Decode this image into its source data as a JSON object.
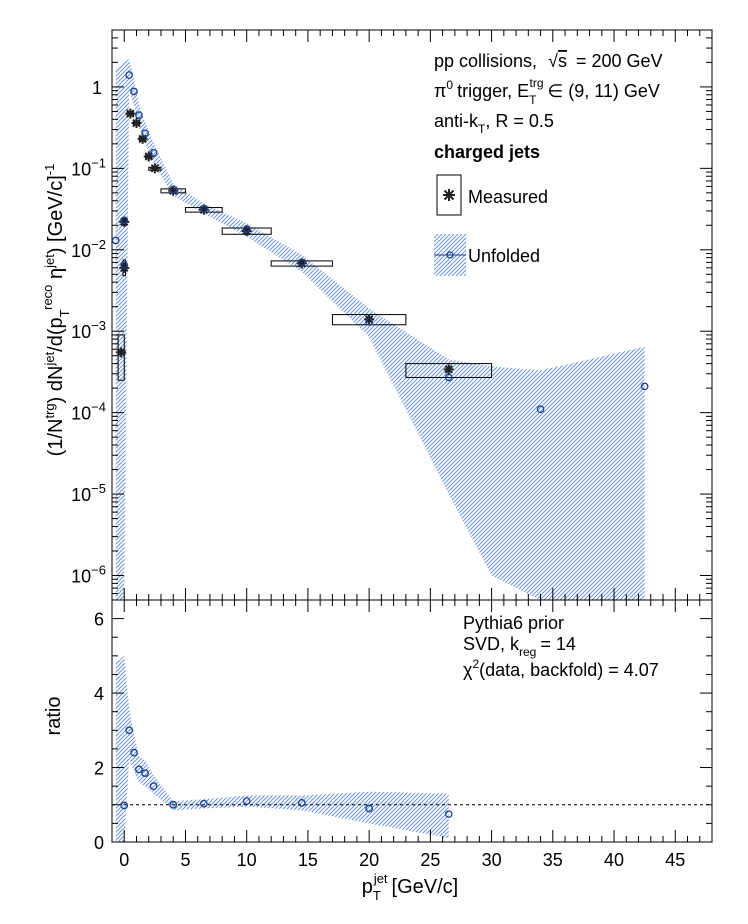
{
  "chart_data": [
    {
      "type": "scatter",
      "title": "",
      "xlabel": "p_T^jet [GeV/c]",
      "ylabel": "(1/N^trg) dN^jet/d(p_T^reco η^jet) [GeV/c]^-1",
      "y_scale": "log",
      "xlim": [
        -1,
        48
      ],
      "ylim": [
        5e-07,
        5
      ],
      "y_ticks": [
        {
          "v": 1e-06,
          "m": "10",
          "e": "−6"
        },
        {
          "v": 1e-05,
          "m": "10",
          "e": "−5"
        },
        {
          "v": 0.0001,
          "m": "10",
          "e": "−4"
        },
        {
          "v": 0.001,
          "m": "10",
          "e": "−3"
        },
        {
          "v": 0.01,
          "m": "10",
          "e": "−2"
        },
        {
          "v": 0.1,
          "m": "10",
          "e": "−1"
        },
        {
          "v": 1,
          "m": "1",
          "e": ""
        }
      ],
      "annotations": {
        "line1": "pp collisions,",
        "line1_sqrt": "s",
        "line1_value": "= 200 GeV",
        "line2_pi": "π",
        "line2_sup": "0",
        "line2_text": "trigger, E",
        "line2_sub": "T",
        "line2_sup2": "trg",
        "line2_range": "∈ (9, 11) GeV",
        "line3_text": "anti-k",
        "line3_sub": "T",
        "line3_rest": ", R = 0.5",
        "line4": "charged jets"
      },
      "series": [
        {
          "name": "Measured",
          "marker": "star",
          "color": "#222222",
          "points": [
            {
              "x": -0.25,
              "y": 0.00055,
              "box_lo": 0.00025,
              "box_hi": 0.0009,
              "xlo": -0.5,
              "xhi": 0.0
            },
            {
              "x": 0.0,
              "y": 0.006,
              "box_lo": 0.0048,
              "box_hi": 0.0075,
              "xlo": -0.1,
              "xhi": 0.1
            },
            {
              "x": 0.0,
              "y": 0.022,
              "box_lo": 0.02,
              "box_hi": 0.024,
              "xlo": -0.1,
              "xhi": 0.1
            },
            {
              "x": 0.5,
              "y": 0.47,
              "box_lo": 0.45,
              "box_hi": 0.49,
              "xlo": 0.25,
              "xhi": 0.75
            },
            {
              "x": 1.0,
              "y": 0.36,
              "box_lo": 0.345,
              "box_hi": 0.375,
              "xlo": 0.75,
              "xhi": 1.25
            },
            {
              "x": 1.5,
              "y": 0.23,
              "box_lo": 0.22,
              "box_hi": 0.24,
              "xlo": 1.25,
              "xhi": 1.75
            },
            {
              "x": 2.0,
              "y": 0.14,
              "box_lo": 0.135,
              "box_hi": 0.145,
              "xlo": 1.75,
              "xhi": 2.25
            },
            {
              "x": 2.5,
              "y": 0.1,
              "box_lo": 0.097,
              "box_hi": 0.103,
              "xlo": 2.0,
              "xhi": 3.0
            },
            {
              "x": 4.0,
              "y": 0.053,
              "box_lo": 0.05,
              "box_hi": 0.056,
              "xlo": 3.0,
              "xhi": 5.0
            },
            {
              "x": 6.5,
              "y": 0.031,
              "box_lo": 0.029,
              "box_hi": 0.033,
              "xlo": 5.0,
              "xhi": 8.0
            },
            {
              "x": 10.0,
              "y": 0.017,
              "box_lo": 0.0155,
              "box_hi": 0.0185,
              "xlo": 8.0,
              "xhi": 12.0
            },
            {
              "x": 14.5,
              "y": 0.0068,
              "box_lo": 0.0063,
              "box_hi": 0.0073,
              "xlo": 12.0,
              "xhi": 17.0
            },
            {
              "x": 20.0,
              "y": 0.0014,
              "box_lo": 0.0012,
              "box_hi": 0.0016,
              "xlo": 17.0,
              "xhi": 23.0
            },
            {
              "x": 26.5,
              "y": 0.00034,
              "box_lo": 0.00027,
              "box_hi": 0.0004,
              "xlo": 23.0,
              "xhi": 30.0
            }
          ]
        },
        {
          "name": "Unfolded",
          "marker": "open-circle",
          "color": "#1a3f8f",
          "band_color": "#6e97d6",
          "points": [
            {
              "x": -0.7,
              "y": 0.013
            },
            {
              "x": 0.0,
              "y": 0.023
            },
            {
              "x": 0.0,
              "y": 0.0065
            },
            {
              "x": 0.4,
              "y": 1.4
            },
            {
              "x": 0.8,
              "y": 0.88
            },
            {
              "x": 1.2,
              "y": 0.45
            },
            {
              "x": 1.7,
              "y": 0.27
            },
            {
              "x": 2.4,
              "y": 0.155
            },
            {
              "x": 4.0,
              "y": 0.055
            },
            {
              "x": 6.5,
              "y": 0.032
            },
            {
              "x": 10.0,
              "y": 0.018
            },
            {
              "x": 14.5,
              "y": 0.007
            },
            {
              "x": 20.0,
              "y": 0.0013
            },
            {
              "x": 26.5,
              "y": 0.00027
            },
            {
              "x": 34.0,
              "y": 0.00011
            },
            {
              "x": 42.5,
              "y": 0.00021
            }
          ],
          "band": [
            {
              "x": -0.7,
              "lo": 3e-07,
              "hi": 1.6
            },
            {
              "x": 0.0,
              "lo": 3e-07,
              "hi": 2.0
            },
            {
              "x": 0.4,
              "lo": 0.9,
              "hi": 2.2
            },
            {
              "x": 0.8,
              "lo": 0.6,
              "hi": 1.25
            },
            {
              "x": 1.2,
              "lo": 0.32,
              "hi": 0.62
            },
            {
              "x": 1.7,
              "lo": 0.2,
              "hi": 0.37
            },
            {
              "x": 2.4,
              "lo": 0.115,
              "hi": 0.205
            },
            {
              "x": 4.0,
              "lo": 0.046,
              "hi": 0.065
            },
            {
              "x": 6.5,
              "lo": 0.028,
              "hi": 0.037
            },
            {
              "x": 10.0,
              "lo": 0.0145,
              "hi": 0.021
            },
            {
              "x": 14.5,
              "lo": 0.0054,
              "hi": 0.0087
            },
            {
              "x": 20.0,
              "lo": 0.00085,
              "hi": 0.0019
            },
            {
              "x": 26.5,
              "lo": 1e-05,
              "hi": 0.00045
            },
            {
              "x": 30.0,
              "lo": 1e-06,
              "hi": 0.00037
            },
            {
              "x": 34.0,
              "lo": 3e-07,
              "hi": 0.00033
            },
            {
              "x": 38.0,
              "lo": 3e-07,
              "hi": 0.00045
            },
            {
              "x": 42.5,
              "lo": 3e-07,
              "hi": 0.00065
            }
          ]
        }
      ],
      "legend": {
        "placement": "top-right",
        "entries": [
          "Measured",
          "Unfolded"
        ]
      }
    },
    {
      "type": "scatter",
      "title": "",
      "xlabel": "p_T^jet [GeV/c]",
      "ylabel": "ratio",
      "xlim": [
        -1,
        48
      ],
      "ylim": [
        0,
        6.5
      ],
      "x_ticks": [
        0,
        5,
        10,
        15,
        20,
        25,
        30,
        35,
        40,
        45
      ],
      "y_ticks": [
        0,
        2,
        4,
        6
      ],
      "reference_line": 1,
      "annotations": {
        "line1": "Pythia6 prior",
        "line2_text": "SVD, k",
        "line2_sub": "reg",
        "line2_rest": "= 14",
        "line3_chi": "χ",
        "line3_sup": "2",
        "line3_text": "(data, backfold) = 4.07"
      },
      "series": [
        {
          "name": "ratio",
          "marker": "open-circle",
          "color": "#1a3f8f",
          "points": [
            {
              "x": 0.0,
              "y": 0.98
            },
            {
              "x": 0.4,
              "y": 3.0
            },
            {
              "x": 0.8,
              "y": 2.4
            },
            {
              "x": 1.2,
              "y": 1.95
            },
            {
              "x": 1.7,
              "y": 1.85
            },
            {
              "x": 2.4,
              "y": 1.5
            },
            {
              "x": 4.0,
              "y": 1.0
            },
            {
              "x": 6.5,
              "y": 1.03
            },
            {
              "x": 10.0,
              "y": 1.1
            },
            {
              "x": 14.5,
              "y": 1.05
            },
            {
              "x": 20.0,
              "y": 0.9
            },
            {
              "x": 26.5,
              "y": 0.75
            }
          ],
          "band": [
            {
              "x": -0.7,
              "lo": 0.0,
              "hi": 4.8
            },
            {
              "x": 0.0,
              "lo": 0.0,
              "hi": 5.0
            },
            {
              "x": 0.4,
              "lo": 2.2,
              "hi": 3.6
            },
            {
              "x": 0.8,
              "lo": 1.9,
              "hi": 2.9
            },
            {
              "x": 1.2,
              "lo": 1.6,
              "hi": 2.3
            },
            {
              "x": 1.7,
              "lo": 1.5,
              "hi": 2.2
            },
            {
              "x": 2.4,
              "lo": 1.3,
              "hi": 1.8
            },
            {
              "x": 4.0,
              "lo": 0.85,
              "hi": 1.1
            },
            {
              "x": 6.5,
              "lo": 0.9,
              "hi": 1.15
            },
            {
              "x": 10.0,
              "lo": 0.95,
              "hi": 1.25
            },
            {
              "x": 14.5,
              "lo": 0.85,
              "hi": 1.25
            },
            {
              "x": 20.0,
              "lo": 0.5,
              "hi": 1.35
            },
            {
              "x": 26.5,
              "lo": 0.1,
              "hi": 1.3
            }
          ]
        }
      ]
    }
  ]
}
